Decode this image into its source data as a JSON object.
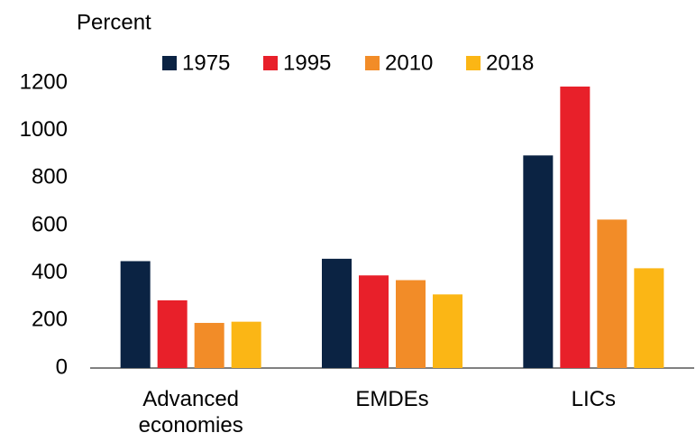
{
  "chart_data": {
    "type": "bar",
    "y_label": "Percent",
    "categories": [
      "Advanced economies",
      "EMDEs",
      "LICs"
    ],
    "series": [
      {
        "name": "1975",
        "color": "#0b2343",
        "values": [
          450,
          460,
          895
        ]
      },
      {
        "name": "1995",
        "color": "#e8202a",
        "values": [
          285,
          390,
          1185
        ]
      },
      {
        "name": "2010",
        "color": "#f28c28",
        "values": [
          190,
          370,
          625
        ]
      },
      {
        "name": "2018",
        "color": "#fbb615",
        "values": [
          195,
          310,
          420
        ]
      }
    ],
    "ylim": [
      0,
      1200
    ],
    "yticks": [
      0,
      200,
      400,
      600,
      800,
      1000,
      1200
    ],
    "grid": false,
    "legend": "top"
  }
}
